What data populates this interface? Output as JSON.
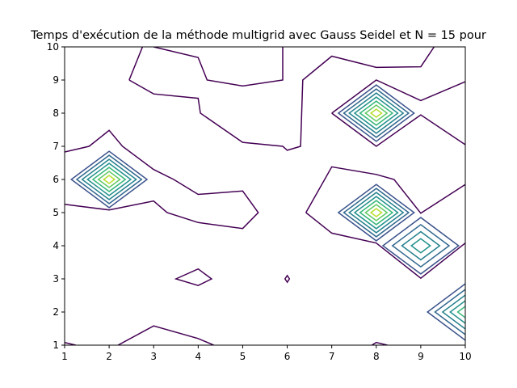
{
  "chart_data": {
    "type": "contour",
    "title": "Temps d'exécution de la méthode multigrid avec Gauss Seidel et N = 15 pour",
    "xlabel": "",
    "ylabel": "",
    "xlim": [
      1,
      10
    ],
    "ylim": [
      1,
      10
    ],
    "x_ticks": [
      "1",
      "2",
      "3",
      "4",
      "5",
      "6",
      "7",
      "8",
      "9",
      "10"
    ],
    "y_ticks": [
      "1",
      "2",
      "3",
      "4",
      "5",
      "6",
      "7",
      "8",
      "9",
      "10"
    ],
    "grid": false,
    "legend": "none",
    "colormap": [
      "#440154",
      "#3b528b",
      "#21918c",
      "#5ec962",
      "#fde725"
    ],
    "peaks": [
      {
        "x": 2,
        "y": 6,
        "levels": 7
      },
      {
        "x": 8,
        "y": 8,
        "levels": 7
      },
      {
        "x": 8,
        "y": 5,
        "levels": 7
      },
      {
        "x": 9,
        "y": 4,
        "levels": 4
      },
      {
        "x": 10,
        "y": 2,
        "levels": 5
      }
    ],
    "outer_contours": [
      {
        "name": "top-left",
        "points": [
          [
            1,
            6.83
          ],
          [
            1.55,
            7.0
          ],
          [
            2,
            7.48
          ],
          [
            2.3,
            7.0
          ],
          [
            3,
            6.3
          ],
          [
            3.45,
            6.0
          ],
          [
            4,
            5.55
          ],
          [
            5,
            5.65
          ],
          [
            5.35,
            5.0
          ],
          [
            5,
            4.52
          ],
          [
            4,
            4.7
          ],
          [
            3.3,
            5.0
          ],
          [
            3,
            5.35
          ],
          [
            2,
            5.08
          ],
          [
            1,
            5.25
          ]
        ]
      },
      {
        "name": "top-band",
        "points": [
          [
            2.45,
            9.0
          ],
          [
            2.75,
            10.0
          ]
        ],
        "extra": [
          [
            3,
            10
          ],
          [
            4,
            9.68
          ],
          [
            4.2,
            9.0
          ],
          [
            5,
            8.82
          ],
          [
            5.9,
            9.0
          ],
          [
            5.9,
            10.0
          ]
        ]
      },
      {
        "name": "middle-band",
        "points": [
          [
            2.45,
            9.0
          ],
          [
            3,
            8.58
          ],
          [
            4,
            8.45
          ],
          [
            4.05,
            8.0
          ],
          [
            5,
            7.12
          ],
          [
            5.9,
            7.0
          ],
          [
            6,
            6.88
          ],
          [
            6.3,
            7.0
          ],
          [
            6.35,
            9.0
          ],
          [
            7,
            9.72
          ],
          [
            8,
            9.38
          ],
          [
            9,
            9.4
          ],
          [
            9.3,
            10.0
          ]
        ]
      },
      {
        "name": "right-upper",
        "points": [
          [
            7,
            8.0
          ],
          [
            8,
            9.0
          ],
          [
            9,
            8.38
          ],
          [
            10,
            8.95
          ]
        ]
      },
      {
        "name": "right-mid",
        "points": [
          [
            7,
            8.0
          ],
          [
            8,
            7.0
          ],
          [
            9,
            7.95
          ],
          [
            10,
            7.05
          ]
        ]
      },
      {
        "name": "lower-right",
        "points": [
          [
            6.42,
            5.0
          ],
          [
            7,
            6.38
          ],
          [
            8,
            6.15
          ],
          [
            8.4,
            6.0
          ],
          [
            9,
            4.98
          ],
          [
            10,
            5.85
          ]
        ]
      },
      {
        "name": "lower-right-2",
        "points": [
          [
            6.42,
            5.0
          ],
          [
            7,
            4.38
          ],
          [
            8,
            4.08
          ],
          [
            9,
            3.02
          ],
          [
            10,
            4.08
          ]
        ]
      },
      {
        "name": "tiny-loop-4-3",
        "points": [
          [
            3.5,
            3.0
          ],
          [
            4,
            3.3
          ],
          [
            4.3,
            3.0
          ],
          [
            4,
            2.8
          ]
        ]
      },
      {
        "name": "tiny-loop-6-3",
        "points": [
          [
            6,
            3.1
          ],
          [
            6.05,
            3.0
          ],
          [
            6,
            2.9
          ],
          [
            5.95,
            3.0
          ]
        ]
      },
      {
        "name": "bottom-left",
        "points": [
          [
            1,
            1.08
          ],
          [
            1.25,
            1.0
          ]
        ]
      },
      {
        "name": "bottom-mid",
        "points": [
          [
            2.2,
            1.0
          ],
          [
            3,
            1.58
          ],
          [
            4,
            1.2
          ],
          [
            4.35,
            1.0
          ]
        ]
      },
      {
        "name": "bottom-8",
        "points": [
          [
            7.9,
            1.0
          ],
          [
            8,
            1.08
          ],
          [
            8.25,
            1.0
          ]
        ]
      }
    ]
  }
}
